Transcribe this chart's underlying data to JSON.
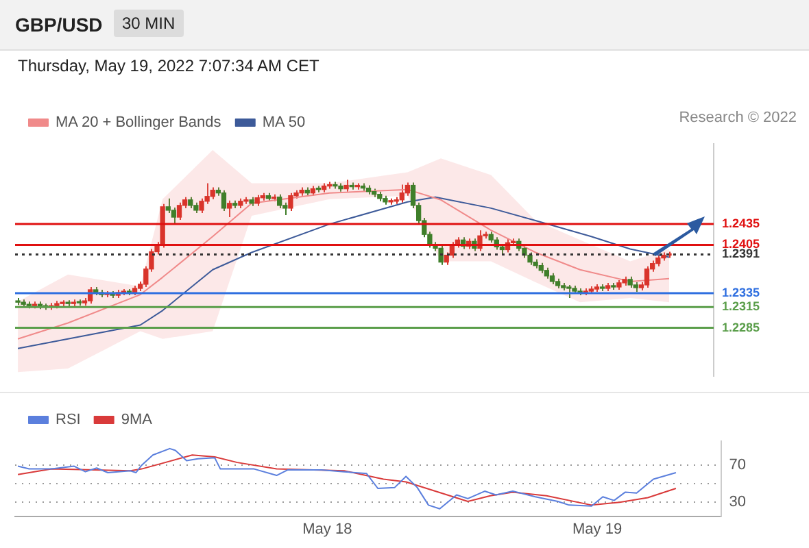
{
  "chart_data": [
    {
      "type": "candlestick",
      "title": "GBP/USD",
      "subtitle": "Thursday, May 19, 2022 7:07:34 AM CET",
      "annotations": [
        "30 MIN",
        "Research © 2022"
      ],
      "x": [
        "2022-05-16T20:30",
        "2022-05-16T21:00",
        "2022-05-16T21:30",
        "2022-05-16T22:00",
        "2022-05-16T22:30",
        "2022-05-16T23:00",
        "2022-05-16T23:30",
        "2022-05-17T00:00",
        "2022-05-17T00:30",
        "2022-05-17T01:00",
        "2022-05-17T01:30",
        "2022-05-17T02:00",
        "2022-05-17T02:30",
        "2022-05-17T03:00",
        "2022-05-17T03:30",
        "2022-05-17T04:00",
        "2022-05-17T04:30",
        "2022-05-17T05:00",
        "2022-05-17T05:30",
        "2022-05-17T06:00",
        "2022-05-17T06:30",
        "2022-05-17T07:00",
        "2022-05-17T07:30",
        "2022-05-17T08:00",
        "2022-05-17T08:30",
        "2022-05-17T09:00",
        "2022-05-17T09:30",
        "2022-05-17T10:00",
        "2022-05-17T10:30",
        "2022-05-17T11:00",
        "2022-05-17T11:30",
        "2022-05-17T12:00",
        "2022-05-17T12:30",
        "2022-05-17T13:00",
        "2022-05-17T13:30",
        "2022-05-17T14:00",
        "2022-05-17T14:30",
        "2022-05-17T15:00",
        "2022-05-17T15:30",
        "2022-05-17T16:00",
        "2022-05-17T16:30",
        "2022-05-17T17:00",
        "2022-05-17T17:30",
        "2022-05-17T18:00",
        "2022-05-17T18:30",
        "2022-05-17T19:00",
        "2022-05-17T19:30",
        "2022-05-17T20:00",
        "2022-05-17T20:30",
        "2022-05-17T21:00",
        "2022-05-17T21:30",
        "2022-05-17T22:00",
        "2022-05-17T22:30",
        "2022-05-17T23:00",
        "2022-05-17T23:30",
        "2022-05-18T00:00",
        "2022-05-18T00:30",
        "2022-05-18T01:00",
        "2022-05-18T01:30",
        "2022-05-18T02:00",
        "2022-05-18T02:30",
        "2022-05-18T03:00",
        "2022-05-18T03:30",
        "2022-05-18T04:00",
        "2022-05-18T04:30",
        "2022-05-18T05:00",
        "2022-05-18T05:30",
        "2022-05-18T06:00",
        "2022-05-18T06:30",
        "2022-05-18T07:00",
        "2022-05-18T07:30",
        "2022-05-18T08:00",
        "2022-05-18T08:30",
        "2022-05-18T09:00",
        "2022-05-18T09:30",
        "2022-05-18T10:00",
        "2022-05-18T10:30",
        "2022-05-18T11:00",
        "2022-05-18T11:30",
        "2022-05-18T12:00",
        "2022-05-18T12:30",
        "2022-05-18T13:00",
        "2022-05-18T13:30",
        "2022-05-18T14:00",
        "2022-05-18T14:30",
        "2022-05-18T15:00",
        "2022-05-18T15:30",
        "2022-05-18T16:00",
        "2022-05-18T16:30",
        "2022-05-18T17:00",
        "2022-05-18T17:30",
        "2022-05-18T18:00",
        "2022-05-18T18:30",
        "2022-05-18T19:00",
        "2022-05-18T19:30",
        "2022-05-18T20:00",
        "2022-05-18T20:30",
        "2022-05-18T21:00",
        "2022-05-18T21:30",
        "2022-05-18T22:00",
        "2022-05-18T22:30",
        "2022-05-18T23:00",
        "2022-05-18T23:30",
        "2022-05-19T00:00",
        "2022-05-19T00:30",
        "2022-05-19T01:00",
        "2022-05-19T01:30",
        "2022-05-19T02:00",
        "2022-05-19T02:30",
        "2022-05-19T03:00",
        "2022-05-19T03:30",
        "2022-05-19T04:00",
        "2022-05-19T04:30",
        "2022-05-19T05:00",
        "2022-05-19T05:30",
        "2022-05-19T06:00",
        "2022-05-19T06:30",
        "2022-05-19T07:00"
      ],
      "ohlc": [
        [
          1.2324,
          1.2328,
          1.2318,
          1.2322
        ],
        [
          1.2322,
          1.2326,
          1.2315,
          1.2319
        ],
        [
          1.2319,
          1.2323,
          1.2313,
          1.2317
        ],
        [
          1.2317,
          1.2323,
          1.2313,
          1.2319
        ],
        [
          1.2319,
          1.2323,
          1.2312,
          1.2316
        ],
        [
          1.2316,
          1.232,
          1.2311,
          1.2315
        ],
        [
          1.2315,
          1.2321,
          1.2311,
          1.2317
        ],
        [
          1.2317,
          1.2324,
          1.2313,
          1.232
        ],
        [
          1.232,
          1.2325,
          1.2316,
          1.2321
        ],
        [
          1.2321,
          1.2325,
          1.2316,
          1.232
        ],
        [
          1.232,
          1.2326,
          1.2316,
          1.2322
        ],
        [
          1.2322,
          1.2326,
          1.2317,
          1.2321
        ],
        [
          1.2321,
          1.2328,
          1.2317,
          1.2324
        ],
        [
          1.2324,
          1.2344,
          1.232,
          1.234
        ],
        [
          1.234,
          1.2344,
          1.2332,
          1.2336
        ],
        [
          1.2336,
          1.234,
          1.2329,
          1.2333
        ],
        [
          1.2333,
          1.2338,
          1.2329,
          1.2334
        ],
        [
          1.2334,
          1.2338,
          1.2328,
          1.2332
        ],
        [
          1.2332,
          1.234,
          1.2328,
          1.2336
        ],
        [
          1.2336,
          1.2341,
          1.2332,
          1.2337
        ],
        [
          1.2337,
          1.2341,
          1.2332,
          1.2336
        ],
        [
          1.2336,
          1.2346,
          1.2332,
          1.2342
        ],
        [
          1.2342,
          1.2352,
          1.2338,
          1.2348
        ],
        [
          1.2348,
          1.2374,
          1.2344,
          1.237
        ],
        [
          1.237,
          1.2399,
          1.2366,
          1.2395
        ],
        [
          1.2395,
          1.2409,
          1.2391,
          1.2405
        ],
        [
          1.2405,
          1.2464,
          1.2401,
          1.246
        ],
        [
          1.246,
          1.2472,
          1.2451,
          1.2455
        ],
        [
          1.2455,
          1.2459,
          1.2436,
          1.2445
        ],
        [
          1.2445,
          1.2466,
          1.2441,
          1.2462
        ],
        [
          1.2462,
          1.2474,
          1.2458,
          1.247
        ],
        [
          1.247,
          1.2474,
          1.2458,
          1.2462
        ],
        [
          1.2462,
          1.2466,
          1.2451,
          1.2455
        ],
        [
          1.2455,
          1.2472,
          1.2451,
          1.2468
        ],
        [
          1.2468,
          1.2494,
          1.2464,
          1.2475
        ],
        [
          1.2475,
          1.2488,
          1.2471,
          1.2484
        ],
        [
          1.2484,
          1.2488,
          1.2476,
          1.248
        ],
        [
          1.248,
          1.2484,
          1.2454,
          1.2458
        ],
        [
          1.2458,
          1.2469,
          1.2445,
          1.2465
        ],
        [
          1.2465,
          1.2469,
          1.2458,
          1.2462
        ],
        [
          1.2462,
          1.2472,
          1.2458,
          1.2468
        ],
        [
          1.2468,
          1.2474,
          1.2464,
          1.247
        ],
        [
          1.247,
          1.2474,
          1.2461,
          1.2465
        ],
        [
          1.2465,
          1.2477,
          1.2461,
          1.2473
        ],
        [
          1.2473,
          1.248,
          1.2469,
          1.2476
        ],
        [
          1.2476,
          1.248,
          1.2468,
          1.2472
        ],
        [
          1.2472,
          1.2478,
          1.2468,
          1.2474
        ],
        [
          1.2474,
          1.2478,
          1.2458,
          1.2462
        ],
        [
          1.2462,
          1.2466,
          1.2448,
          1.2458
        ],
        [
          1.2458,
          1.248,
          1.2454,
          1.2476
        ],
        [
          1.2476,
          1.2484,
          1.2472,
          1.248
        ],
        [
          1.248,
          1.2488,
          1.2476,
          1.2484
        ],
        [
          1.2484,
          1.2488,
          1.2476,
          1.248
        ],
        [
          1.248,
          1.249,
          1.2476,
          1.2486
        ],
        [
          1.2486,
          1.249,
          1.2481,
          1.2485
        ],
        [
          1.2485,
          1.2494,
          1.2481,
          1.249
        ],
        [
          1.249,
          1.2496,
          1.2486,
          1.2492
        ],
        [
          1.2492,
          1.2496,
          1.2486,
          1.249
        ],
        [
          1.249,
          1.2494,
          1.2482,
          1.2486
        ],
        [
          1.2486,
          1.2499,
          1.2482,
          1.2491
        ],
        [
          1.2491,
          1.2495,
          1.2485,
          1.2489
        ],
        [
          1.2489,
          1.2494,
          1.2485,
          1.249
        ],
        [
          1.249,
          1.2494,
          1.2483,
          1.2487
        ],
        [
          1.2487,
          1.2491,
          1.2478,
          1.2482
        ],
        [
          1.2482,
          1.2486,
          1.2474,
          1.2478
        ],
        [
          1.2478,
          1.2482,
          1.2468,
          1.2472
        ],
        [
          1.2472,
          1.2476,
          1.2463,
          1.2467
        ],
        [
          1.2467,
          1.2472,
          1.2463,
          1.2468
        ],
        [
          1.2468,
          1.2474,
          1.2464,
          1.247
        ],
        [
          1.247,
          1.2492,
          1.2466,
          1.248
        ],
        [
          1.248,
          1.2495,
          1.2476,
          1.2491
        ],
        [
          1.2491,
          1.2495,
          1.2458,
          1.2462
        ],
        [
          1.2462,
          1.2466,
          1.2436,
          1.244
        ],
        [
          1.244,
          1.2444,
          1.2416,
          1.242
        ],
        [
          1.242,
          1.2424,
          1.2401,
          1.2405
        ],
        [
          1.2405,
          1.2409,
          1.2396,
          1.24
        ],
        [
          1.24,
          1.2404,
          1.2376,
          1.238
        ],
        [
          1.238,
          1.2394,
          1.2376,
          1.239
        ],
        [
          1.239,
          1.2409,
          1.2386,
          1.2405
        ],
        [
          1.2405,
          1.2416,
          1.2401,
          1.2412
        ],
        [
          1.2412,
          1.2416,
          1.2399,
          1.2403
        ],
        [
          1.2403,
          1.2414,
          1.2399,
          1.241
        ],
        [
          1.241,
          1.2414,
          1.2396,
          1.24
        ],
        [
          1.24,
          1.2426,
          1.2396,
          1.2418
        ],
        [
          1.2418,
          1.2424,
          1.2414,
          1.242
        ],
        [
          1.242,
          1.2424,
          1.2408,
          1.2412
        ],
        [
          1.2412,
          1.2416,
          1.2398,
          1.2402
        ],
        [
          1.2402,
          1.2406,
          1.239,
          1.2398
        ],
        [
          1.2398,
          1.2414,
          1.2394,
          1.2408
        ],
        [
          1.2408,
          1.2414,
          1.2404,
          1.241
        ],
        [
          1.241,
          1.2414,
          1.2396,
          1.24
        ],
        [
          1.24,
          1.2404,
          1.2386,
          1.239
        ],
        [
          1.239,
          1.2394,
          1.2376,
          1.238
        ],
        [
          1.238,
          1.2384,
          1.2371,
          1.2375
        ],
        [
          1.2375,
          1.2379,
          1.2364,
          1.2368
        ],
        [
          1.2368,
          1.2372,
          1.2356,
          1.236
        ],
        [
          1.236,
          1.2364,
          1.2348,
          1.2352
        ],
        [
          1.2352,
          1.2356,
          1.2342,
          1.2346
        ],
        [
          1.2346,
          1.235,
          1.2339,
          1.2343
        ],
        [
          1.2343,
          1.2347,
          1.2328,
          1.2342
        ],
        [
          1.2342,
          1.2346,
          1.2334,
          1.2338
        ],
        [
          1.2338,
          1.2342,
          1.2332,
          1.2336
        ],
        [
          1.2336,
          1.2342,
          1.2332,
          1.2338
        ],
        [
          1.2338,
          1.2345,
          1.2334,
          1.2341
        ],
        [
          1.2341,
          1.2348,
          1.2337,
          1.2344
        ],
        [
          1.2344,
          1.2348,
          1.2338,
          1.2342
        ],
        [
          1.2342,
          1.235,
          1.2338,
          1.2346
        ],
        [
          1.2346,
          1.235,
          1.234,
          1.2344
        ],
        [
          1.2344,
          1.2354,
          1.234,
          1.235
        ],
        [
          1.235,
          1.2359,
          1.2346,
          1.2355
        ],
        [
          1.2355,
          1.2359,
          1.2343,
          1.2347
        ],
        [
          1.2347,
          1.2351,
          1.2337,
          1.2343
        ],
        [
          1.2343,
          1.2351,
          1.2339,
          1.2347
        ],
        [
          1.2347,
          1.2374,
          1.2343,
          1.237
        ],
        [
          1.237,
          1.2382,
          1.2366,
          1.2378
        ],
        [
          1.2378,
          1.239,
          1.2374,
          1.2386
        ],
        [
          1.2386,
          1.2394,
          1.2382,
          1.239
        ],
        [
          1.239,
          1.2395,
          1.2386,
          1.2391
        ]
      ],
      "series": [
        {
          "name": "MA 20 + Bollinger Bands",
          "type": "line",
          "color": "#f08a8a",
          "x": [
            "2022-05-16T20:30",
            "2022-05-17T01:00",
            "2022-05-17T07:30",
            "2022-05-17T09:30",
            "2022-05-17T14:00",
            "2022-05-17T17:30",
            "2022-05-18T00:30",
            "2022-05-18T07:30",
            "2022-05-18T10:30",
            "2022-05-18T15:00",
            "2022-05-18T19:00",
            "2022-05-18T23:00",
            "2022-05-19T03:30",
            "2022-05-19T07:00"
          ],
          "values": [
            1.2269,
            1.2292,
            1.2333,
            1.2358,
            1.2417,
            1.2465,
            1.248,
            1.2485,
            1.247,
            1.2426,
            1.2394,
            1.2369,
            1.2352,
            1.2356
          ],
          "upper": [
            1.2323,
            1.2362,
            1.2345,
            1.2471,
            1.2542,
            1.2494,
            1.2494,
            1.251,
            1.253,
            1.2506,
            1.244,
            1.2412,
            1.2381,
            1.2399
          ],
          "lower": [
            1.2221,
            1.2226,
            1.228,
            1.2269,
            1.228,
            1.2447,
            1.2471,
            1.2476,
            1.2381,
            1.2381,
            1.2351,
            1.2322,
            1.2328,
            1.2322
          ]
        },
        {
          "name": "MA 50",
          "type": "line",
          "color": "#3d5a99",
          "x": [
            "2022-05-16T20:30",
            "2022-05-17T07:30",
            "2022-05-17T09:30",
            "2022-05-17T14:00",
            "2022-05-17T17:30",
            "2022-05-18T00:30",
            "2022-05-18T07:30",
            "2022-05-18T10:00",
            "2022-05-18T15:00",
            "2022-05-18T19:00",
            "2022-05-19T00:00",
            "2022-05-19T03:30",
            "2022-05-19T07:00"
          ],
          "values": [
            1.2255,
            1.2289,
            1.231,
            1.2369,
            1.2394,
            1.2435,
            1.2467,
            1.2474,
            1.2458,
            1.244,
            1.2417,
            1.2399,
            1.2387
          ]
        }
      ],
      "ref_lines": [
        {
          "axis": "y",
          "value": 1.2435,
          "color": "#e01010",
          "line_style": "solid"
        },
        {
          "axis": "y",
          "value": 1.2405,
          "color": "#e01010",
          "line_style": "solid"
        },
        {
          "axis": "y",
          "value": 1.2391,
          "color": "#333333",
          "line_style": "dotted"
        },
        {
          "axis": "y",
          "value": 1.2335,
          "color": "#2f6fe0",
          "line_style": "solid"
        },
        {
          "axis": "y",
          "value": 1.2315,
          "color": "#5a9e4a",
          "line_style": "solid"
        },
        {
          "axis": "y",
          "value": 1.2285,
          "color": "#5a9e4a",
          "line_style": "solid"
        }
      ],
      "xlim": [
        "2022-05-16T20:15",
        "2022-05-19T11:00"
      ],
      "ylim": [
        1.2215,
        1.2551
      ],
      "yticks": [
        1.2435,
        1.2405,
        1.2391,
        1.2335,
        1.2315,
        1.2285
      ],
      "tick_labels": "y",
      "legend": "top left",
      "marker": "none"
    },
    {
      "type": "line",
      "series": [
        {
          "name": "RSI",
          "color": "#5b7fdd",
          "x": [
            "2022-05-16T20:30",
            "2022-05-16T21:30",
            "2022-05-16T23:30",
            "2022-05-17T01:30",
            "2022-05-17T02:30",
            "2022-05-17T03:30",
            "2022-05-17T04:30",
            "2022-05-17T06:30",
            "2022-05-17T07:00",
            "2022-05-17T07:30",
            "2022-05-17T08:30",
            "2022-05-17T10:00",
            "2022-05-17T10:30",
            "2022-05-17T11:30",
            "2022-05-17T12:30",
            "2022-05-17T14:00",
            "2022-05-17T14:30",
            "2022-05-17T16:00",
            "2022-05-17T17:30",
            "2022-05-17T19:30",
            "2022-05-17T20:30",
            "2022-05-17T23:30",
            "2022-05-18T01:30",
            "2022-05-18T03:30",
            "2022-05-18T04:30",
            "2022-05-18T06:00",
            "2022-05-18T07:00",
            "2022-05-18T08:00",
            "2022-05-18T09:00",
            "2022-05-18T10:00",
            "2022-05-18T11:30",
            "2022-05-18T12:30",
            "2022-05-18T14:00",
            "2022-05-18T15:00",
            "2022-05-18T16:30",
            "2022-05-18T18:30",
            "2022-05-18T20:30",
            "2022-05-18T21:30",
            "2022-05-18T23:30",
            "2022-05-19T00:30",
            "2022-05-19T01:30",
            "2022-05-19T02:30",
            "2022-05-19T03:30",
            "2022-05-19T05:00",
            "2022-05-19T07:00"
          ],
          "values": [
            69,
            66,
            66,
            69,
            63,
            67,
            62,
            64,
            62,
            70,
            81,
            88,
            86,
            75,
            77,
            78,
            66,
            66,
            66,
            59,
            65,
            65,
            63,
            61,
            45,
            46,
            58,
            46,
            27,
            23,
            38,
            34,
            42,
            38,
            42,
            36,
            31,
            27,
            26,
            36,
            32,
            41,
            40,
            55,
            62
          ]
        },
        {
          "name": "9MA",
          "color": "#d93a3a",
          "x": [
            "2022-05-16T20:30",
            "2022-05-16T23:30",
            "2022-05-17T06:30",
            "2022-05-17T07:30",
            "2022-05-17T12:00",
            "2022-05-17T14:00",
            "2022-05-17T16:00",
            "2022-05-17T19:30",
            "2022-05-18T01:30",
            "2022-05-18T05:00",
            "2022-05-18T07:00",
            "2022-05-18T12:30",
            "2022-05-18T14:30",
            "2022-05-18T16:30",
            "2022-05-18T19:30",
            "2022-05-18T23:30",
            "2022-05-19T02:00",
            "2022-05-19T04:30",
            "2022-05-19T07:00"
          ],
          "values": [
            60,
            66,
            64,
            66,
            81,
            79,
            73,
            66,
            64,
            55,
            52,
            31,
            37,
            41,
            37,
            27,
            30,
            35,
            45
          ]
        }
      ],
      "xlim": [
        "2022-05-16T20:15",
        "2022-05-19T11:00"
      ],
      "xticks": [
        {
          "value": "2022-05-18",
          "label": "May 18"
        },
        {
          "value": "2022-05-19",
          "label": "May 19"
        }
      ],
      "ylim": [
        15,
        96
      ],
      "yticks": [
        70,
        {
          "value": 50,
          "label": null
        },
        30
      ],
      "grid": "y",
      "legend": "top left",
      "marker": "none"
    }
  ]
}
